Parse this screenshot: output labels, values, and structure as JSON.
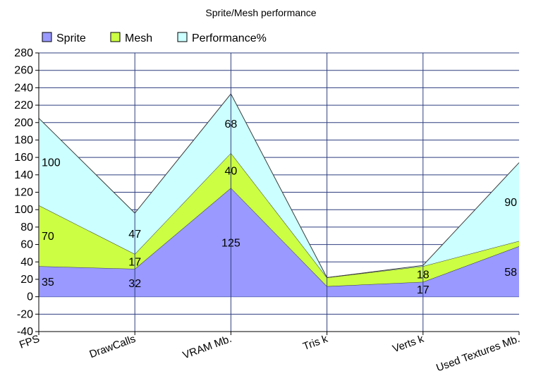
{
  "chart_data": {
    "type": "area",
    "stacked": true,
    "title": "Sprite/Mesh performance",
    "categories": [
      "FPS",
      "DrawCalls",
      "VRAM Mb.",
      "Tris k",
      "Verts k",
      "Used Textures Mb."
    ],
    "series": [
      {
        "name": "Sprite",
        "color": "#9999ff",
        "values": [
          35,
          32,
          125,
          12,
          17,
          58
        ],
        "labels": [
          "35",
          "32",
          "125",
          "",
          "17",
          "58"
        ]
      },
      {
        "name": "Mesh",
        "color": "#ccff44",
        "values": [
          70,
          17,
          40,
          10,
          18,
          6
        ],
        "labels": [
          "70",
          "17",
          "40",
          "",
          "18",
          ""
        ]
      },
      {
        "name": "Performance%",
        "color": "#ccffff",
        "values": [
          100,
          47,
          68,
          0,
          1,
          90
        ],
        "labels": [
          "100",
          "47",
          "68",
          "",
          "",
          "90"
        ]
      }
    ],
    "ylim": [
      -40,
      280
    ],
    "ytick_step": 20,
    "grid": true,
    "legend": "top-left",
    "xlabel": "",
    "ylabel": ""
  }
}
